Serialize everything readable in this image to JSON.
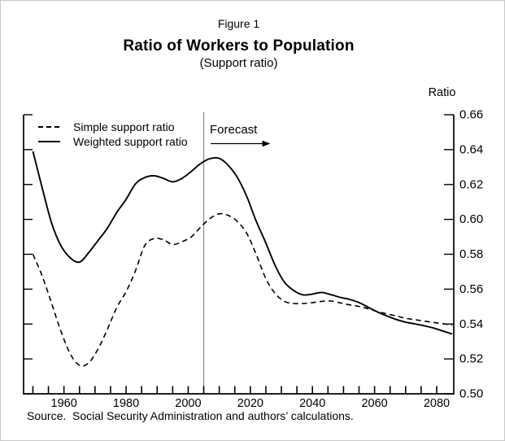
{
  "header": {
    "figure_label": "Figure 1",
    "title": "Ratio of Workers to Population",
    "subtitle": "(Support ratio)"
  },
  "footer": {
    "source": "Source.  Social Security Administration and authors’ calculations."
  },
  "colors": {
    "line": "#000000",
    "forecast_line": "#8a8a8a",
    "text": "#000000",
    "background": "#ffffff"
  },
  "chart_data": {
    "type": "line",
    "title": "Ratio of Workers to Population",
    "subtitle": "(Support ratio)",
    "grid": "off",
    "legend_position": "top-left-inside",
    "y_axis": {
      "unit_label": "Ratio",
      "min": 0.5,
      "max": 0.66,
      "tick_step": 0.02,
      "ticks": [
        {
          "value": 0.66,
          "label": "0.66"
        },
        {
          "value": 0.64,
          "label": "0.64"
        },
        {
          "value": 0.62,
          "label": "0.62"
        },
        {
          "value": 0.6,
          "label": "0.60"
        },
        {
          "value": 0.58,
          "label": "0.58"
        },
        {
          "value": 0.56,
          "label": "0.56"
        },
        {
          "value": 0.54,
          "label": "0.54"
        },
        {
          "value": 0.52,
          "label": "0.52"
        },
        {
          "value": 0.5,
          "label": "0.50"
        }
      ]
    },
    "x_axis": {
      "min": 1947,
      "max": 2085.5,
      "minor_tick_start": 1950,
      "minor_tick_end": 2080,
      "minor_tick_step": 5,
      "major_ticks": [
        {
          "value": 1960,
          "label": "1960"
        },
        {
          "value": 1980,
          "label": "1980"
        },
        {
          "value": 2000,
          "label": "2000"
        },
        {
          "value": 2020,
          "label": "2020"
        },
        {
          "value": 2040,
          "label": "2040"
        },
        {
          "value": 2060,
          "label": "2060"
        },
        {
          "value": 2080,
          "label": "2080"
        }
      ]
    },
    "forecast": {
      "label": "Forecast",
      "year": 2005
    },
    "series": [
      {
        "name": "Simple support ratio",
        "style": "dashed",
        "points": [
          [
            1950,
            0.58
          ],
          [
            1953,
            0.5675
          ],
          [
            1956,
            0.552
          ],
          [
            1959,
            0.536
          ],
          [
            1962,
            0.523
          ],
          [
            1965,
            0.5163
          ],
          [
            1968,
            0.5178
          ],
          [
            1971,
            0.5258
          ],
          [
            1974,
            0.537
          ],
          [
            1977,
            0.5495
          ],
          [
            1980,
            0.5585
          ],
          [
            1983,
            0.5705
          ],
          [
            1986,
            0.585
          ],
          [
            1989,
            0.589
          ],
          [
            1992,
            0.5883
          ],
          [
            1995,
            0.5856
          ],
          [
            1998,
            0.5872
          ],
          [
            2001,
            0.59
          ],
          [
            2004,
            0.5955
          ],
          [
            2007,
            0.6005
          ],
          [
            2010,
            0.6032
          ],
          [
            2013,
            0.6022
          ],
          [
            2016,
            0.5985
          ],
          [
            2019,
            0.5915
          ],
          [
            2022,
            0.5795
          ],
          [
            2025,
            0.566
          ],
          [
            2028,
            0.5575
          ],
          [
            2031,
            0.553
          ],
          [
            2034,
            0.5518
          ],
          [
            2037,
            0.5518
          ],
          [
            2040,
            0.5523
          ],
          [
            2043,
            0.553
          ],
          [
            2046,
            0.5532
          ],
          [
            2049,
            0.5521
          ],
          [
            2052,
            0.551
          ],
          [
            2055,
            0.5501
          ],
          [
            2058,
            0.5487
          ],
          [
            2061,
            0.5471
          ],
          [
            2064,
            0.5458
          ],
          [
            2067,
            0.5446
          ],
          [
            2070,
            0.5433
          ],
          [
            2073,
            0.5425
          ],
          [
            2076,
            0.5417
          ],
          [
            2079,
            0.5409
          ],
          [
            2082,
            0.5402
          ],
          [
            2085,
            0.5394
          ]
        ]
      },
      {
        "name": "Weighted support ratio",
        "style": "solid",
        "points": [
          [
            1950,
            0.639
          ],
          [
            1953,
            0.618
          ],
          [
            1956,
            0.598
          ],
          [
            1959,
            0.585
          ],
          [
            1962,
            0.578
          ],
          [
            1965,
            0.5755
          ],
          [
            1968,
            0.581
          ],
          [
            1971,
            0.588
          ],
          [
            1974,
            0.595
          ],
          [
            1977,
            0.604
          ],
          [
            1980,
            0.6115
          ],
          [
            1983,
            0.6203
          ],
          [
            1986,
            0.624
          ],
          [
            1989,
            0.625
          ],
          [
            1992,
            0.6235
          ],
          [
            1995,
            0.6215
          ],
          [
            1998,
            0.6235
          ],
          [
            2001,
            0.6275
          ],
          [
            2004,
            0.632
          ],
          [
            2007,
            0.6348
          ],
          [
            2010,
            0.635
          ],
          [
            2013,
            0.6308
          ],
          [
            2016,
            0.6235
          ],
          [
            2019,
            0.6125
          ],
          [
            2022,
            0.5985
          ],
          [
            2025,
            0.5865
          ],
          [
            2028,
            0.5735
          ],
          [
            2031,
            0.564
          ],
          [
            2034,
            0.5592
          ],
          [
            2037,
            0.5567
          ],
          [
            2040,
            0.5572
          ],
          [
            2043,
            0.5581
          ],
          [
            2046,
            0.5568
          ],
          [
            2049,
            0.5553
          ],
          [
            2052,
            0.5541
          ],
          [
            2055,
            0.5523
          ],
          [
            2058,
            0.5496
          ],
          [
            2061,
            0.5469
          ],
          [
            2064,
            0.5446
          ],
          [
            2067,
            0.5426
          ],
          [
            2070,
            0.5411
          ],
          [
            2073,
            0.5401
          ],
          [
            2076,
            0.539
          ],
          [
            2079,
            0.5377
          ],
          [
            2082,
            0.536
          ],
          [
            2085,
            0.5343
          ]
        ]
      }
    ]
  }
}
